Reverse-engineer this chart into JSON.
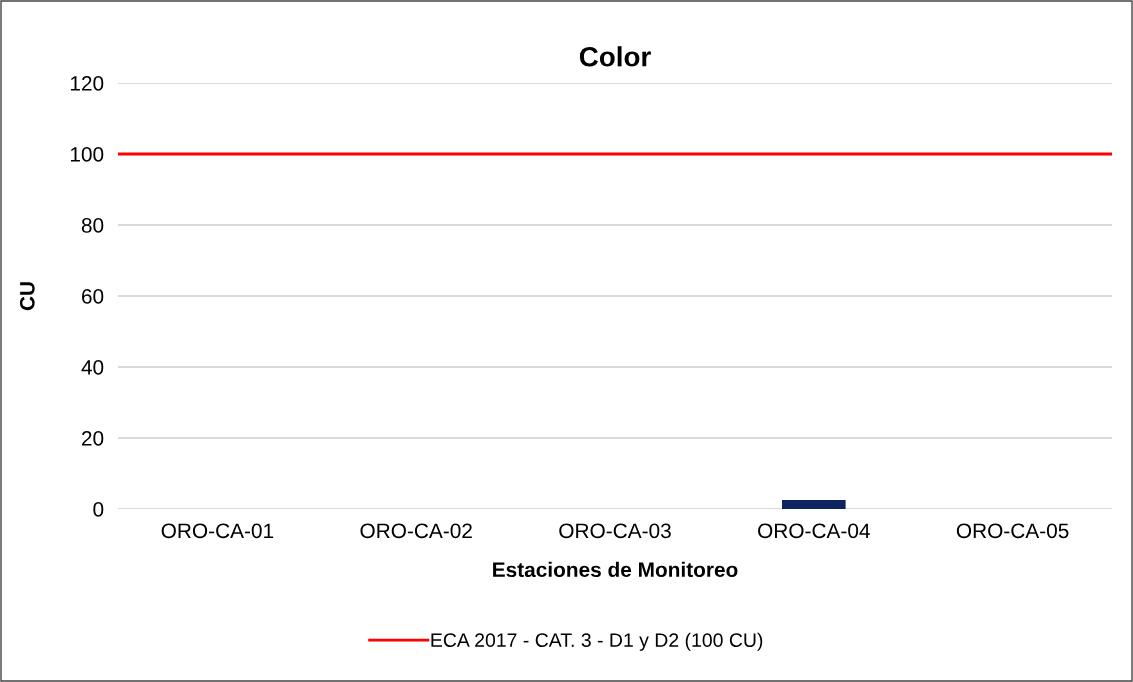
{
  "chart_data": {
    "type": "bar",
    "title": "Color",
    "xlabel": "Estaciones de Monitoreo",
    "ylabel": "CU",
    "categories": [
      "ORO-CA-01",
      "ORO-CA-02",
      "ORO-CA-03",
      "ORO-CA-04",
      "ORO-CA-05"
    ],
    "series": [
      {
        "color": "#0d2461",
        "values": [
          null,
          null,
          null,
          2.5,
          null
        ]
      }
    ],
    "ylim": [
      0,
      120
    ],
    "yticks": [
      0,
      20,
      40,
      60,
      80,
      100,
      120
    ],
    "grid": "y",
    "ref_lines": [
      {
        "axis": "y",
        "value": 100,
        "label": "ECA 2017 - CAT. 3 - D1 y D2 (100 CU)",
        "color": "#ff0000"
      }
    ],
    "legend": "bottom"
  }
}
